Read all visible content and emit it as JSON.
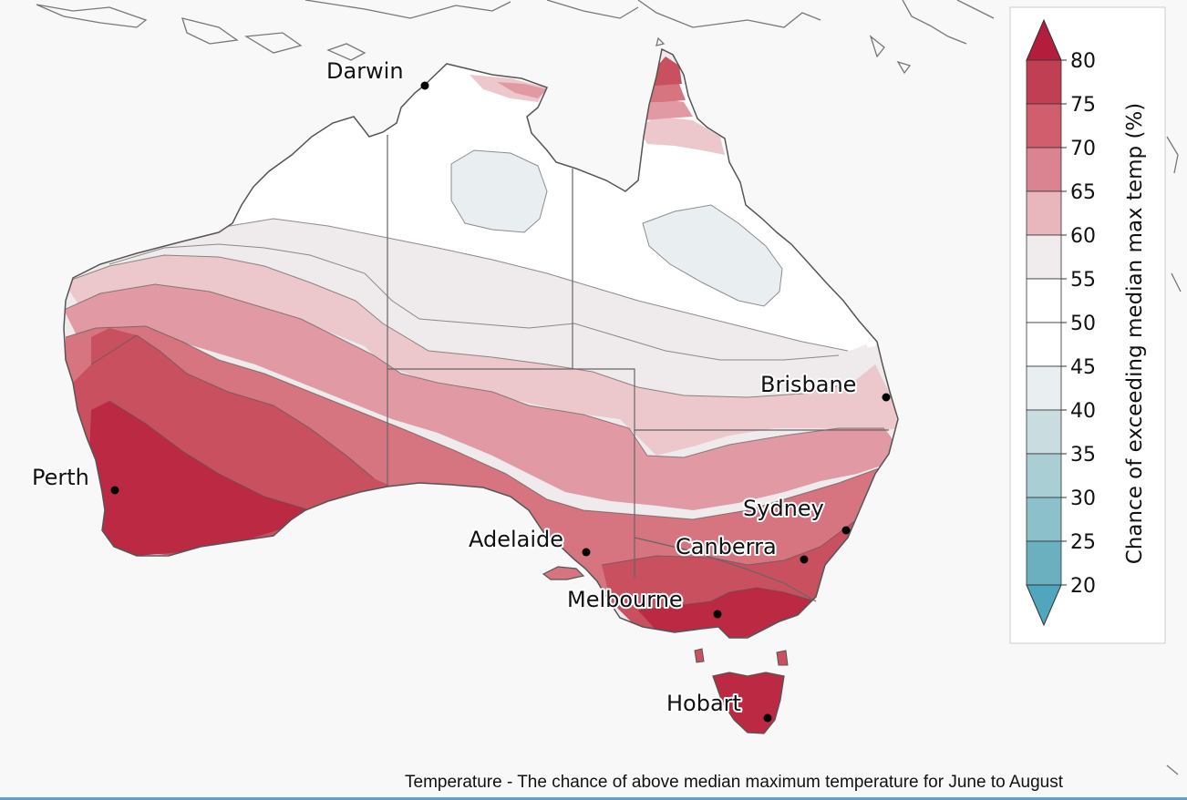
{
  "legend": {
    "title": "Chance of exceeding median max temp (%)",
    "ticks": [
      "80",
      "75",
      "70",
      "65",
      "60",
      "55",
      "50",
      "45",
      "40",
      "35",
      "30",
      "25",
      "20"
    ],
    "band_colors": [
      "#c03f52",
      "#d05e6c",
      "#da8491",
      "#e8b7bd",
      "#f0ebed",
      "#ffffff",
      "#ffffff",
      "#e9eef1",
      "#c9dce0",
      "#a9cfd5",
      "#8cc0ca",
      "#6ab0bf"
    ],
    "top_arrow_color": "#b41e3c",
    "bottom_arrow_color": "#4fa6bd"
  },
  "cities": [
    {
      "name": "Darwin"
    },
    {
      "name": "Brisbane"
    },
    {
      "name": "Perth"
    },
    {
      "name": "Sydney"
    },
    {
      "name": "Adelaide"
    },
    {
      "name": "Canberra"
    },
    {
      "name": "Melbourne"
    },
    {
      "name": "Hobart"
    }
  ],
  "caption": "Temperature - The chance of above median maximum temperature for June to August",
  "zone_colors": {
    "p80": "#bb2a42",
    "p75": "#c9515f",
    "p70": "#d67480",
    "p65": "#e19aa3",
    "p60": "#ecc8cc",
    "p55": "#efeaec",
    "p50": "#ffffff",
    "p45": "#e9eef1",
    "outline": "#555555",
    "background": "#f8f8f8"
  }
}
